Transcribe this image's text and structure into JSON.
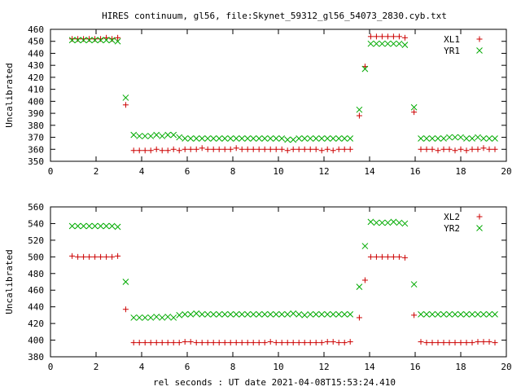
{
  "title": "HIRES continuum, gl56, file:Skynet_59312_gl56_54073_2830.cyb.txt",
  "xlabel": "rel seconds : UT date 2021-04-08T15:53:24.410",
  "colors": {
    "plus": "#cc0000",
    "cross": "#00aa00"
  },
  "chart_data": [
    {
      "type": "scatter",
      "title": "",
      "xlabel": "",
      "ylabel": "Uncalibrated",
      "xlim": [
        0,
        20
      ],
      "ylim": [
        350,
        460
      ],
      "xticks": [
        "0",
        "2",
        "4",
        "6",
        "8",
        "10",
        "12",
        "14",
        "16",
        "18",
        "20"
      ],
      "yticks": [
        "350",
        "360",
        "370",
        "380",
        "390",
        "400",
        "410",
        "420",
        "430",
        "440",
        "450",
        "460"
      ],
      "grid": false,
      "legend": "top-right",
      "series": [
        {
          "name": "XL1",
          "marker": "plus",
          "color": "#cc0000",
          "x": [
            0.95,
            1.2,
            1.45,
            1.7,
            1.95,
            2.2,
            2.45,
            2.7,
            2.95,
            3.3,
            3.65,
            3.9,
            4.15,
            4.4,
            4.65,
            4.9,
            5.15,
            5.4,
            5.65,
            5.9,
            6.15,
            6.4,
            6.65,
            6.9,
            7.15,
            7.4,
            7.65,
            7.9,
            8.15,
            8.4,
            8.65,
            8.9,
            9.15,
            9.4,
            9.65,
            9.9,
            10.15,
            10.4,
            10.65,
            10.9,
            11.15,
            11.4,
            11.65,
            11.9,
            12.15,
            12.4,
            12.65,
            12.9,
            13.15,
            13.55,
            13.8,
            14.05,
            14.3,
            14.55,
            14.8,
            15.05,
            15.3,
            15.55,
            15.95,
            16.25,
            16.5,
            16.75,
            17.0,
            17.25,
            17.5,
            17.75,
            18.0,
            18.25,
            18.5,
            18.75,
            19.0,
            19.25,
            19.5
          ],
          "y": [
            452,
            452,
            452,
            452,
            452,
            452,
            453,
            452,
            453,
            397,
            359,
            359,
            359,
            359,
            360,
            359,
            359,
            360,
            359,
            360,
            360,
            360,
            361,
            360,
            360,
            360,
            360,
            360,
            361,
            360,
            360,
            360,
            360,
            360,
            360,
            360,
            360,
            359,
            360,
            360,
            360,
            360,
            360,
            359,
            360,
            359,
            360,
            360,
            360,
            388,
            429,
            454,
            454,
            454,
            454,
            454,
            454,
            453,
            391,
            360,
            360,
            360,
            359,
            360,
            360,
            359,
            360,
            359,
            360,
            360,
            361,
            360,
            360
          ]
        },
        {
          "name": "YR1",
          "marker": "cross",
          "color": "#00aa00",
          "x": [
            0.95,
            1.2,
            1.45,
            1.7,
            1.95,
            2.2,
            2.45,
            2.7,
            2.95,
            3.3,
            3.65,
            3.9,
            4.15,
            4.4,
            4.65,
            4.9,
            5.15,
            5.4,
            5.65,
            5.9,
            6.15,
            6.4,
            6.65,
            6.9,
            7.15,
            7.4,
            7.65,
            7.9,
            8.15,
            8.4,
            8.65,
            8.9,
            9.15,
            9.4,
            9.65,
            9.9,
            10.15,
            10.4,
            10.65,
            10.9,
            11.15,
            11.4,
            11.65,
            11.9,
            12.15,
            12.4,
            12.65,
            12.9,
            13.15,
            13.55,
            13.8,
            14.05,
            14.3,
            14.55,
            14.8,
            15.05,
            15.3,
            15.55,
            15.95,
            16.25,
            16.5,
            16.75,
            17.0,
            17.25,
            17.5,
            17.75,
            18.0,
            18.25,
            18.5,
            18.75,
            19.0,
            19.25,
            19.5
          ],
          "y": [
            451,
            451,
            451,
            451,
            451,
            451,
            451,
            451,
            450,
            403,
            372,
            371,
            371,
            371,
            372,
            371,
            372,
            372,
            370,
            369,
            369,
            369,
            369,
            369,
            369,
            369,
            369,
            369,
            369,
            369,
            369,
            369,
            369,
            369,
            369,
            369,
            369,
            368,
            368,
            369,
            369,
            369,
            369,
            369,
            369,
            369,
            369,
            369,
            369,
            393,
            427,
            448,
            448,
            448,
            448,
            448,
            448,
            447,
            395,
            369,
            369,
            369,
            369,
            369,
            370,
            370,
            370,
            369,
            369,
            370,
            369,
            369,
            369
          ]
        }
      ]
    },
    {
      "type": "scatter",
      "title": "",
      "xlabel": "rel seconds : UT date 2021-04-08T15:53:24.410",
      "ylabel": "Uncalibrated",
      "xlim": [
        0,
        20
      ],
      "ylim": [
        380,
        560
      ],
      "xticks": [
        "0",
        "2",
        "4",
        "6",
        "8",
        "10",
        "12",
        "14",
        "16",
        "18",
        "20"
      ],
      "yticks": [
        "380",
        "400",
        "420",
        "440",
        "460",
        "480",
        "500",
        "520",
        "540",
        "560"
      ],
      "grid": false,
      "legend": "top-right",
      "series": [
        {
          "name": "XL2",
          "marker": "plus",
          "color": "#cc0000",
          "x": [
            0.95,
            1.2,
            1.45,
            1.7,
            1.95,
            2.2,
            2.45,
            2.7,
            2.95,
            3.3,
            3.65,
            3.9,
            4.15,
            4.4,
            4.65,
            4.9,
            5.15,
            5.4,
            5.65,
            5.9,
            6.15,
            6.4,
            6.65,
            6.9,
            7.15,
            7.4,
            7.65,
            7.9,
            8.15,
            8.4,
            8.65,
            8.9,
            9.15,
            9.4,
            9.65,
            9.9,
            10.15,
            10.4,
            10.65,
            10.9,
            11.15,
            11.4,
            11.65,
            11.9,
            12.15,
            12.4,
            12.65,
            12.9,
            13.15,
            13.55,
            13.8,
            14.05,
            14.3,
            14.55,
            14.8,
            15.05,
            15.3,
            15.55,
            15.95,
            16.25,
            16.5,
            16.75,
            17.0,
            17.25,
            17.5,
            17.75,
            18.0,
            18.25,
            18.5,
            18.75,
            19.0,
            19.25,
            19.5
          ],
          "y": [
            501,
            500,
            500,
            500,
            500,
            500,
            500,
            500,
            501,
            437,
            397,
            397,
            397,
            397,
            397,
            397,
            397,
            397,
            397,
            398,
            398,
            397,
            397,
            397,
            397,
            397,
            397,
            397,
            397,
            397,
            397,
            397,
            397,
            397,
            398,
            397,
            397,
            397,
            397,
            397,
            397,
            397,
            397,
            397,
            398,
            398,
            397,
            397,
            398,
            427,
            472,
            500,
            500,
            500,
            500,
            500,
            500,
            499,
            430,
            398,
            397,
            397,
            397,
            397,
            397,
            397,
            397,
            397,
            397,
            398,
            398,
            398,
            397
          ]
        },
        {
          "name": "YR2",
          "marker": "cross",
          "color": "#00aa00",
          "x": [
            0.95,
            1.2,
            1.45,
            1.7,
            1.95,
            2.2,
            2.45,
            2.7,
            2.95,
            3.3,
            3.65,
            3.9,
            4.15,
            4.4,
            4.65,
            4.9,
            5.15,
            5.4,
            5.65,
            5.9,
            6.15,
            6.4,
            6.65,
            6.9,
            7.15,
            7.4,
            7.65,
            7.9,
            8.15,
            8.4,
            8.65,
            8.9,
            9.15,
            9.4,
            9.65,
            9.9,
            10.15,
            10.4,
            10.65,
            10.9,
            11.15,
            11.4,
            11.65,
            11.9,
            12.15,
            12.4,
            12.65,
            12.9,
            13.15,
            13.55,
            13.8,
            14.05,
            14.3,
            14.55,
            14.8,
            15.05,
            15.3,
            15.55,
            15.95,
            16.25,
            16.5,
            16.75,
            17.0,
            17.25,
            17.5,
            17.75,
            18.0,
            18.25,
            18.5,
            18.75,
            19.0,
            19.25,
            19.5
          ],
          "y": [
            537,
            537,
            537,
            537,
            537,
            537,
            537,
            537,
            536,
            470,
            427,
            427,
            427,
            427,
            428,
            427,
            428,
            427,
            430,
            431,
            431,
            432,
            431,
            431,
            431,
            431,
            431,
            431,
            431,
            431,
            431,
            431,
            431,
            431,
            431,
            431,
            431,
            431,
            432,
            431,
            430,
            431,
            431,
            431,
            431,
            431,
            431,
            431,
            431,
            464,
            513,
            542,
            541,
            541,
            541,
            542,
            541,
            540,
            467,
            431,
            431,
            431,
            431,
            431,
            431,
            431,
            431,
            431,
            431,
            431,
            431,
            431,
            431
          ]
        }
      ]
    }
  ]
}
